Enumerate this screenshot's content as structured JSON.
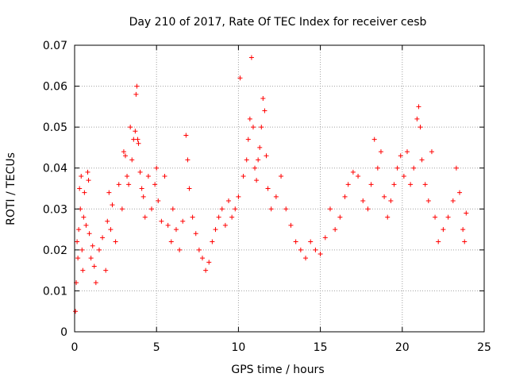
{
  "chart_data": {
    "type": "scatter",
    "title": "Day 210 of 2017, Rate Of TEC Index for receiver cesb",
    "xlabel": "GPS time / hours",
    "ylabel": "ROTI / TECUs",
    "xlim": [
      0,
      25
    ],
    "ylim": [
      0,
      0.07
    ],
    "xticks": [
      0,
      5,
      10,
      15,
      20,
      25
    ],
    "xtick_labels": [
      "0",
      "5",
      "10",
      "15",
      "20",
      "25"
    ],
    "yticks": [
      0,
      0.01,
      0.02,
      0.03,
      0.04,
      0.05,
      0.06,
      0.07
    ],
    "ytick_labels": [
      "0",
      "0.01",
      "0.02",
      "0.03",
      "0.04",
      "0.05",
      "0.06",
      "0.07"
    ],
    "grid": true,
    "grid_style": "dotted",
    "marker": "+",
    "color": "#ff0000",
    "series": [
      {
        "points": [
          [
            0.05,
            0.005
          ],
          [
            0.1,
            0.012
          ],
          [
            0.15,
            0.022
          ],
          [
            0.2,
            0.018
          ],
          [
            0.25,
            0.025
          ],
          [
            0.3,
            0.035
          ],
          [
            0.35,
            0.03
          ],
          [
            0.4,
            0.038
          ],
          [
            0.45,
            0.02
          ],
          [
            0.5,
            0.015
          ],
          [
            0.55,
            0.028
          ],
          [
            0.6,
            0.034
          ],
          [
            0.7,
            0.026
          ],
          [
            0.8,
            0.039
          ],
          [
            0.85,
            0.037
          ],
          [
            0.9,
            0.024
          ],
          [
            1.0,
            0.018
          ],
          [
            1.1,
            0.021
          ],
          [
            1.2,
            0.016
          ],
          [
            1.3,
            0.012
          ],
          [
            1.5,
            0.02
          ],
          [
            1.7,
            0.023
          ],
          [
            1.9,
            0.015
          ],
          [
            2.0,
            0.027
          ],
          [
            2.1,
            0.034
          ],
          [
            2.2,
            0.025
          ],
          [
            2.3,
            0.031
          ],
          [
            2.5,
            0.022
          ],
          [
            2.7,
            0.036
          ],
          [
            2.9,
            0.03
          ],
          [
            3.0,
            0.044
          ],
          [
            3.1,
            0.043
          ],
          [
            3.2,
            0.038
          ],
          [
            3.3,
            0.036
          ],
          [
            3.4,
            0.05
          ],
          [
            3.5,
            0.042
          ],
          [
            3.6,
            0.047
          ],
          [
            3.7,
            0.049
          ],
          [
            3.75,
            0.058
          ],
          [
            3.8,
            0.06
          ],
          [
            3.85,
            0.047
          ],
          [
            3.9,
            0.046
          ],
          [
            4.0,
            0.039
          ],
          [
            4.1,
            0.035
          ],
          [
            4.2,
            0.033
          ],
          [
            4.3,
            0.028
          ],
          [
            4.5,
            0.038
          ],
          [
            4.7,
            0.03
          ],
          [
            4.9,
            0.036
          ],
          [
            5.0,
            0.04
          ],
          [
            5.1,
            0.032
          ],
          [
            5.3,
            0.027
          ],
          [
            5.5,
            0.038
          ],
          [
            5.7,
            0.026
          ],
          [
            5.9,
            0.022
          ],
          [
            6.0,
            0.03
          ],
          [
            6.2,
            0.025
          ],
          [
            6.4,
            0.02
          ],
          [
            6.6,
            0.027
          ],
          [
            6.8,
            0.048
          ],
          [
            6.9,
            0.042
          ],
          [
            7.0,
            0.035
          ],
          [
            7.2,
            0.028
          ],
          [
            7.4,
            0.024
          ],
          [
            7.6,
            0.02
          ],
          [
            7.8,
            0.018
          ],
          [
            8.0,
            0.015
          ],
          [
            8.2,
            0.017
          ],
          [
            8.4,
            0.022
          ],
          [
            8.6,
            0.025
          ],
          [
            8.8,
            0.028
          ],
          [
            9.0,
            0.03
          ],
          [
            9.2,
            0.026
          ],
          [
            9.4,
            0.032
          ],
          [
            9.6,
            0.028
          ],
          [
            9.8,
            0.03
          ],
          [
            10.0,
            0.033
          ],
          [
            10.1,
            0.062
          ],
          [
            10.3,
            0.038
          ],
          [
            10.5,
            0.042
          ],
          [
            10.6,
            0.047
          ],
          [
            10.7,
            0.052
          ],
          [
            10.8,
            0.067
          ],
          [
            10.9,
            0.05
          ],
          [
            11.0,
            0.04
          ],
          [
            11.1,
            0.037
          ],
          [
            11.2,
            0.042
          ],
          [
            11.3,
            0.045
          ],
          [
            11.4,
            0.05
          ],
          [
            11.5,
            0.057
          ],
          [
            11.6,
            0.054
          ],
          [
            11.7,
            0.043
          ],
          [
            11.8,
            0.035
          ],
          [
            12.0,
            0.03
          ],
          [
            12.3,
            0.033
          ],
          [
            12.6,
            0.038
          ],
          [
            12.9,
            0.03
          ],
          [
            13.2,
            0.026
          ],
          [
            13.5,
            0.022
          ],
          [
            13.8,
            0.02
          ],
          [
            14.1,
            0.018
          ],
          [
            14.4,
            0.022
          ],
          [
            14.7,
            0.02
          ],
          [
            15.0,
            0.019
          ],
          [
            15.3,
            0.023
          ],
          [
            15.6,
            0.03
          ],
          [
            15.9,
            0.025
          ],
          [
            16.2,
            0.028
          ],
          [
            16.5,
            0.033
          ],
          [
            16.7,
            0.036
          ],
          [
            17.0,
            0.039
          ],
          [
            17.3,
            0.038
          ],
          [
            17.6,
            0.032
          ],
          [
            17.9,
            0.03
          ],
          [
            18.1,
            0.036
          ],
          [
            18.3,
            0.047
          ],
          [
            18.5,
            0.04
          ],
          [
            18.7,
            0.044
          ],
          [
            18.9,
            0.033
          ],
          [
            19.1,
            0.028
          ],
          [
            19.3,
            0.032
          ],
          [
            19.5,
            0.036
          ],
          [
            19.7,
            0.04
          ],
          [
            19.9,
            0.043
          ],
          [
            20.1,
            0.038
          ],
          [
            20.3,
            0.044
          ],
          [
            20.5,
            0.036
          ],
          [
            20.7,
            0.04
          ],
          [
            20.9,
            0.052
          ],
          [
            21.0,
            0.055
          ],
          [
            21.1,
            0.05
          ],
          [
            21.2,
            0.042
          ],
          [
            21.4,
            0.036
          ],
          [
            21.6,
            0.032
          ],
          [
            21.8,
            0.044
          ],
          [
            22.0,
            0.028
          ],
          [
            22.2,
            0.022
          ],
          [
            22.5,
            0.025
          ],
          [
            22.8,
            0.028
          ],
          [
            23.1,
            0.032
          ],
          [
            23.3,
            0.04
          ],
          [
            23.5,
            0.034
          ],
          [
            23.7,
            0.025
          ],
          [
            23.8,
            0.022
          ],
          [
            23.9,
            0.029
          ]
        ]
      }
    ]
  }
}
